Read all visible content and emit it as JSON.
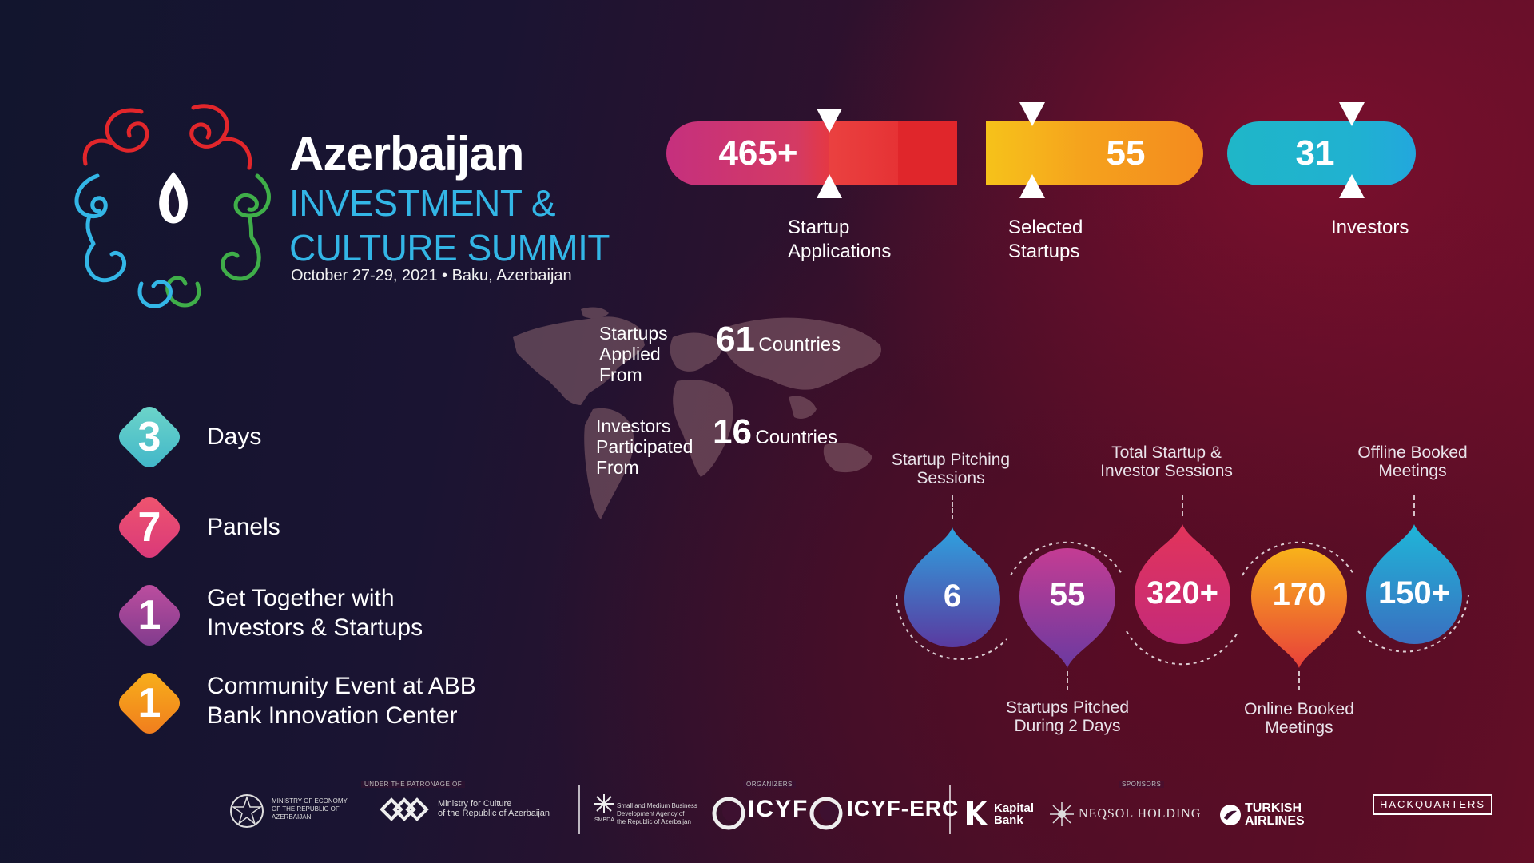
{
  "header": {
    "title": "Azerbaijan",
    "subtitle_line1": "INVESTMENT &",
    "subtitle_line2": "CULTURE SUMMIT",
    "date_location": "October 27-29, 2021 • Baku, Azerbaijan"
  },
  "stats": [
    {
      "value": "465+",
      "label_line1": "Startup",
      "label_line2": "Applications"
    },
    {
      "value": "55",
      "label_line1": "Selected",
      "label_line2": "Startups"
    },
    {
      "value": "31",
      "label_line1": "Investors",
      "label_line2": ""
    }
  ],
  "countries": [
    {
      "label_line1": "Startups",
      "label_line2": "Applied",
      "label_line3": "From",
      "value": "61",
      "unit": "Countries"
    },
    {
      "label_line1": "Investors",
      "label_line2": "Participated",
      "label_line3": "From",
      "value": "16",
      "unit": "Countries"
    }
  ],
  "highlights": [
    {
      "num": "3",
      "label_line1": "Days",
      "label_line2": "",
      "color": "#4fc3c8"
    },
    {
      "num": "7",
      "label_line1": "Panels",
      "label_line2": "",
      "color": "#e0486a"
    },
    {
      "num": "1",
      "label_line1": "Get Together with",
      "label_line2": "Investors & Startups",
      "color": "#9b3a8f"
    },
    {
      "num": "1",
      "label_line1": "Community Event at ABB",
      "label_line2": "Bank Innovation Center",
      "color": "#f29a1c"
    }
  ],
  "sessions": [
    {
      "value": "6",
      "label_line1": "Startup Pitching",
      "label_line2": "Sessions"
    },
    {
      "value": "55",
      "label_line1": "Startups Pitched",
      "label_line2": "During 2 Days"
    },
    {
      "value": "320+",
      "label_line1": "Total Startup &",
      "label_line2": "Investor Sessions"
    },
    {
      "value": "170",
      "label_line1": "Online Booked",
      "label_line2": "Meetings"
    },
    {
      "value": "150+",
      "label_line1": "Offline Booked",
      "label_line2": "Meetings"
    }
  ],
  "footer": {
    "patronage_caption": "Under the patronage of",
    "organizers_caption": "Organizers",
    "sponsors_caption": "Sponsors",
    "ministry_economy": "MINISTRY OF ECONOMY OF THE REPUBLIC OF AZERBAIJAN",
    "ministry_culture_line1": "Ministry for Culture",
    "ministry_culture_line2": "of the Republic of Azerbaijan",
    "smb_line1": "Small and Medium Business",
    "smb_line2": "Development Agency of",
    "smb_line3": "the Republic of Azerbaijan",
    "smb_abbr": "SMBDA",
    "icyf": "ICYF",
    "icyf_erc": "ICYF-ERC",
    "kapital_line1": "Kapital",
    "kapital_line2": "Bank",
    "neqsol": "NEQSOL HOLDING",
    "turkish_line1": "TURKISH",
    "turkish_line2": "AIRLINES",
    "hackquarters": "HACKQUARTERS"
  },
  "colors": {
    "cyan": "#33b6e6",
    "magenta": "#c5307e",
    "red": "#e2262b",
    "yellow": "#f6c21a",
    "orange": "#f48a1e",
    "teal": "#1fb6c8"
  },
  "icons": [
    "summit-logo-icon",
    "flame-icon",
    "world-map-icon",
    "ministry-emblem-icon",
    "culture-knot-icon",
    "smb-star-icon",
    "icyf-crescent-icon",
    "kapital-k-icon",
    "neqsol-sun-icon",
    "turkish-bird-icon"
  ]
}
